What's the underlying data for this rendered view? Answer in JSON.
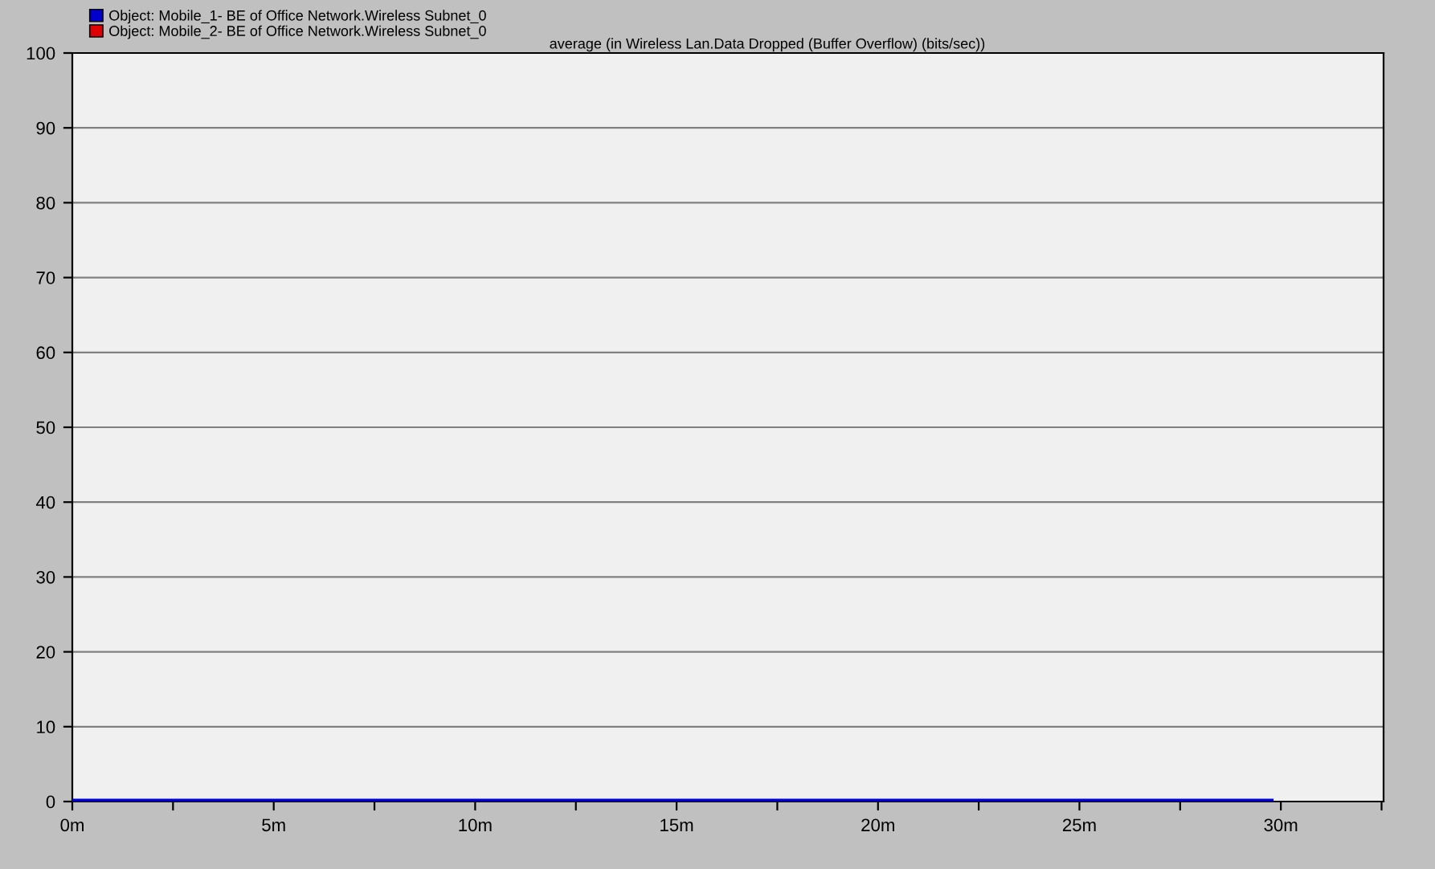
{
  "chart_data": {
    "type": "line",
    "title": "average (in Wireless Lan.Data Dropped (Buffer Overflow) (bits/sec))",
    "x": [
      0,
      29.75
    ],
    "series": [
      {
        "name": "Object: Mobile_1- BE of Office Network.Wireless Subnet_0",
        "color": "#0000cc",
        "values": [
          0,
          0
        ]
      },
      {
        "name": "Object: Mobile_2- BE of Office Network.Wireless Subnet_0",
        "color": "#e00000",
        "values": [
          null,
          null
        ]
      }
    ],
    "xlim": [
      0,
      32.55
    ],
    "xticks": [
      {
        "value": 0,
        "label": "0m"
      },
      {
        "value": 2.5,
        "label": null
      },
      {
        "value": 5,
        "label": "5m"
      },
      {
        "value": 7.5,
        "label": null
      },
      {
        "value": 10,
        "label": "10m"
      },
      {
        "value": 12.5,
        "label": null
      },
      {
        "value": 15,
        "label": "15m"
      },
      {
        "value": 17.5,
        "label": null
      },
      {
        "value": 20,
        "label": "20m"
      },
      {
        "value": 22.5,
        "label": null
      },
      {
        "value": 25,
        "label": "25m"
      },
      {
        "value": 27.5,
        "label": null
      },
      {
        "value": 30,
        "label": "30m"
      },
      {
        "value": 32.5,
        "label": null
      }
    ],
    "ylim": [
      0,
      100
    ],
    "yticks": [
      0,
      10,
      20,
      30,
      40,
      50,
      60,
      70,
      80,
      90,
      100
    ],
    "grid": "y",
    "legend": "top left",
    "marker": "none",
    "line_style": "solid"
  }
}
